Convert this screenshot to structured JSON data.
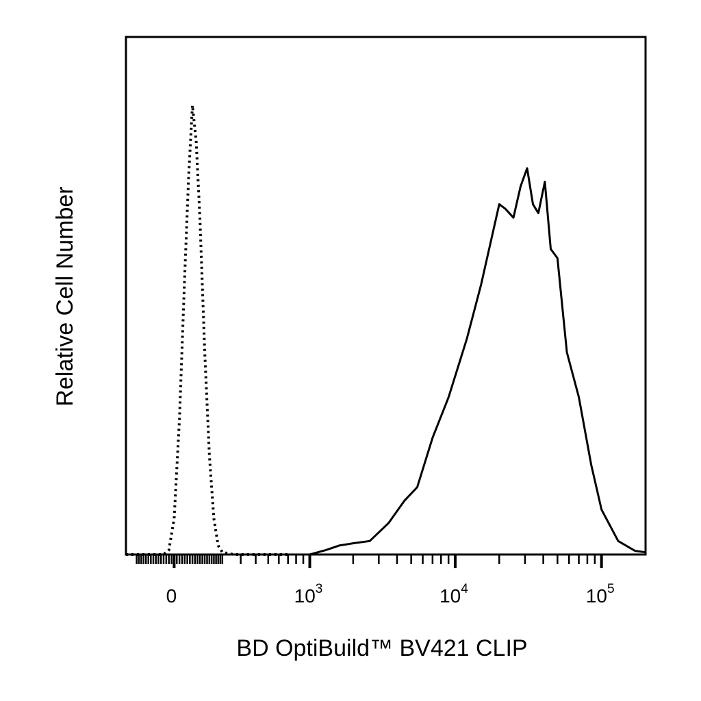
{
  "chart_data": {
    "type": "line",
    "title": "",
    "xlabel": "BD OptiBuild™ BV421 CLIP",
    "ylabel": "Relative Cell Number",
    "x_scale": "biexponential",
    "xlim": [
      -200,
      200000
    ],
    "ylim": [
      0,
      100
    ],
    "grid": false,
    "legend": "none",
    "x_tick_labels": [
      {
        "value": 0,
        "base": "0",
        "exp": ""
      },
      {
        "value": 1000,
        "base": "10",
        "exp": "3"
      },
      {
        "value": 10000,
        "base": "10",
        "exp": "4"
      },
      {
        "value": 100000,
        "base": "10",
        "exp": "5"
      }
    ],
    "series": [
      {
        "style": "dotted",
        "color": "#000000",
        "points": [
          [
            -200,
            0
          ],
          [
            -40,
            0
          ],
          [
            -20,
            1
          ],
          [
            0,
            8
          ],
          [
            20,
            30
          ],
          [
            40,
            62
          ],
          [
            55,
            84
          ],
          [
            70,
            100
          ],
          [
            85,
            92
          ],
          [
            100,
            75
          ],
          [
            120,
            45
          ],
          [
            140,
            22
          ],
          [
            160,
            8
          ],
          [
            180,
            2
          ],
          [
            200,
            0.5
          ],
          [
            260,
            0
          ],
          [
            400,
            0
          ],
          [
            700,
            0
          ]
        ]
      },
      {
        "style": "solid",
        "color": "#000000",
        "points": [
          [
            700,
            0
          ],
          [
            1000,
            0
          ],
          [
            1300,
            1
          ],
          [
            1600,
            2
          ],
          [
            2000,
            2.5
          ],
          [
            2600,
            3
          ],
          [
            3500,
            7
          ],
          [
            4500,
            12
          ],
          [
            5500,
            15
          ],
          [
            7000,
            26
          ],
          [
            9000,
            35
          ],
          [
            12000,
            48
          ],
          [
            15000,
            60
          ],
          [
            20000,
            78
          ],
          [
            22000,
            77
          ],
          [
            25000,
            75
          ],
          [
            28000,
            82
          ],
          [
            31000,
            86
          ],
          [
            34000,
            78
          ],
          [
            37000,
            76
          ],
          [
            41000,
            83
          ],
          [
            45000,
            68
          ],
          [
            50000,
            66
          ],
          [
            58000,
            45
          ],
          [
            70000,
            35
          ],
          [
            85000,
            20
          ],
          [
            100000,
            10
          ],
          [
            130000,
            3
          ],
          [
            170000,
            0.8
          ],
          [
            200000,
            0.5
          ]
        ]
      }
    ]
  }
}
